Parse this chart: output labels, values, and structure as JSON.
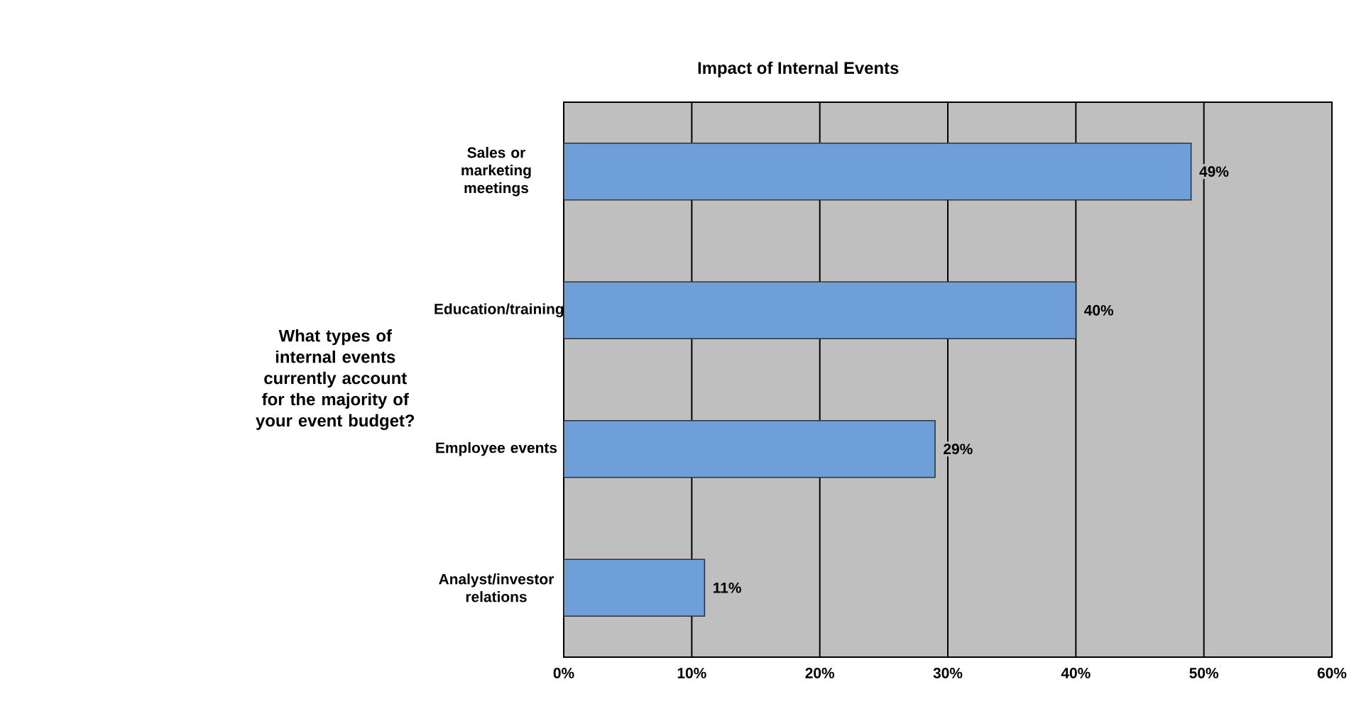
{
  "chart_data": {
    "type": "bar",
    "orientation": "horizontal",
    "title": "Impact of Internal Events",
    "ylabel": "What types of internal events currently account for the majority of your event budget?",
    "categories": [
      "Sales or marketing meetings",
      "Education/training",
      "Employee events",
      "Analyst/investor relations"
    ],
    "values": [
      49,
      40,
      29,
      11
    ],
    "value_labels": [
      "49%",
      "40%",
      "29%",
      "11%"
    ],
    "color": "#6e9fd8",
    "xlim": [
      0,
      60
    ],
    "xticks": [
      {
        "value": 0,
        "label": "0%"
      },
      {
        "value": 10,
        "label": "10%"
      },
      {
        "value": 20,
        "label": "20%"
      },
      {
        "value": 30,
        "label": "30%"
      },
      {
        "value": 40,
        "label": "40%"
      },
      {
        "value": 50,
        "label": "50%"
      },
      {
        "value": 60,
        "label": "60%"
      }
    ],
    "grid": "x"
  }
}
